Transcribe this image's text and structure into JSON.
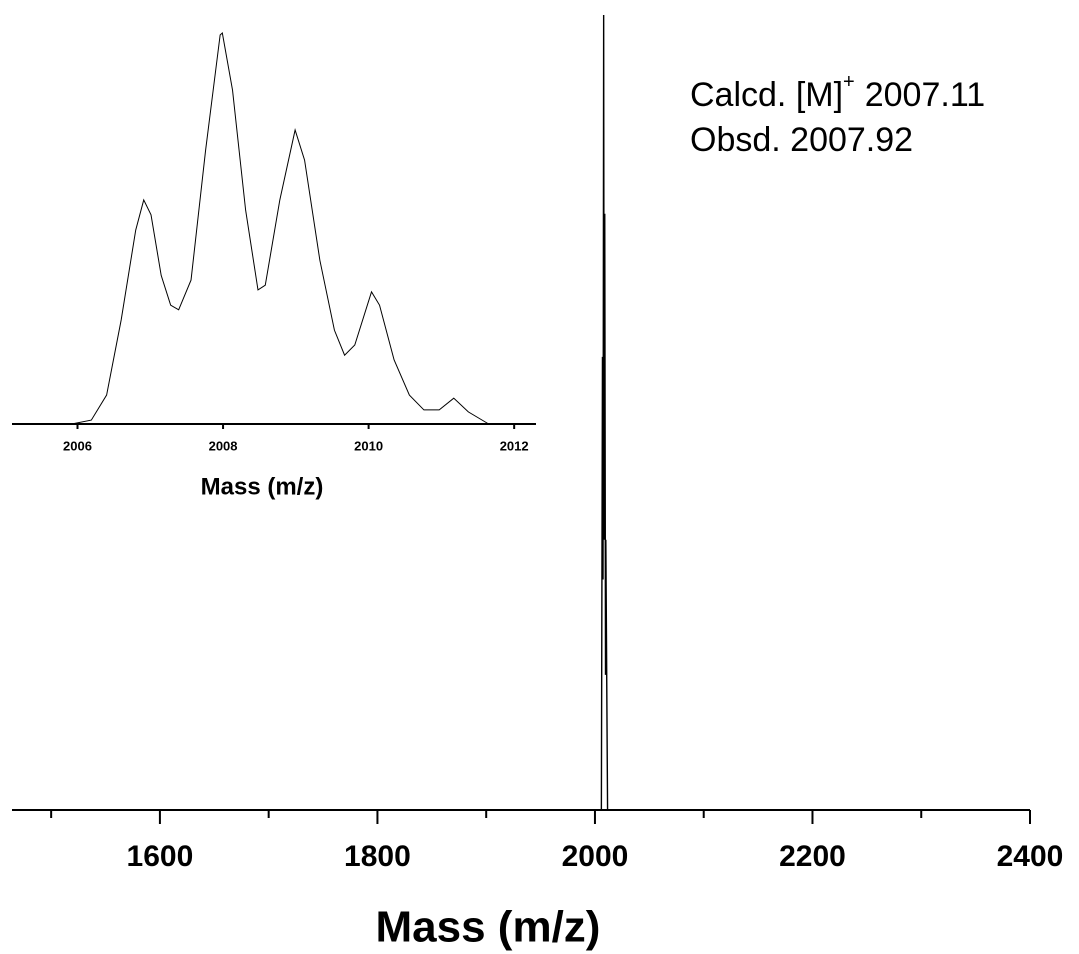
{
  "chart_data": [
    {
      "type": "line",
      "xlabel": "Mass (m/z)",
      "annotations": [
        {
          "text": "Calcd. [M]",
          "sup": "+",
          "value": "2007.11"
        },
        {
          "text": "Obsd. 2007.92"
        }
      ],
      "xlim": [
        1464,
        2400
      ],
      "ylim": [
        0,
        100
      ],
      "xticks": [
        1600,
        1800,
        2000,
        2200,
        2400
      ],
      "xticks_minor": [
        1500,
        1700,
        1900,
        2100,
        2300
      ],
      "series": [
        {
          "color": "#000000",
          "x": [
            1990,
            2005.9,
            2006.9,
            2007.4,
            2008.0,
            2008.5,
            2009.0,
            2009.7,
            2010.0,
            2011.6,
            2020
          ],
          "values": [
            0,
            0,
            57,
            29,
            100,
            34,
            75,
            17,
            34,
            0,
            0
          ]
        }
      ]
    },
    {
      "type": "line",
      "xlabel": "Mass (m/z)",
      "xlim": [
        2005.1,
        2012.3
      ],
      "ylim": [
        0,
        100
      ],
      "xticks": [
        2006,
        2008,
        2010,
        2012
      ],
      "series": [
        {
          "color": "#000000",
          "x": [
            2005.92,
            2006.19,
            2006.4,
            2006.6,
            2006.8,
            2006.91,
            2007.01,
            2007.15,
            2007.28,
            2007.39,
            2007.56,
            2007.76,
            2007.96,
            2007.99,
            2008.13,
            2008.31,
            2008.48,
            2008.58,
            2008.78,
            2008.99,
            2009.12,
            2009.33,
            2009.53,
            2009.67,
            2009.81,
            2010.04,
            2010.15,
            2010.35,
            2010.56,
            2010.76,
            2010.97,
            2011.17,
            2011.37,
            2011.65
          ],
          "values": [
            0,
            1,
            7.4,
            26.6,
            49.6,
            57.3,
            53.5,
            38,
            30.4,
            29.2,
            36.8,
            70,
            99.5,
            100,
            85.4,
            54.7,
            34.3,
            35.5,
            57.3,
            75.2,
            67.5,
            41.9,
            24,
            17.6,
            20.2,
            33.8,
            30.4,
            16.4,
            7.4,
            3.6,
            3.6,
            6.6,
            3.1,
            0
          ]
        }
      ]
    }
  ]
}
